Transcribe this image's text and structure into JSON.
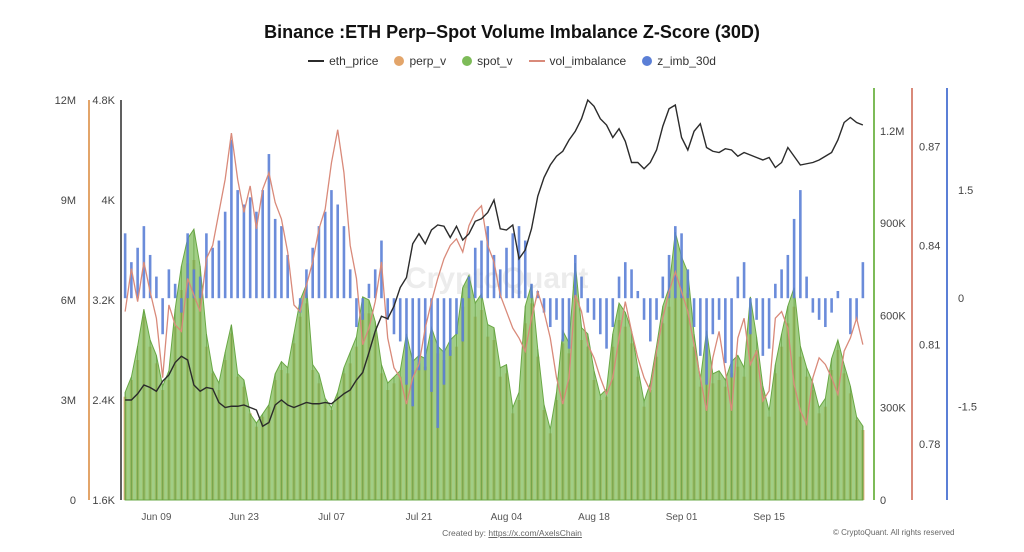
{
  "chart_data": {
    "type": "bar",
    "title": "Binance :ETH Perp–Spot Volume Imbalance Z-Score (30D)",
    "legend": {
      "placement": "top-center"
    },
    "x_ticks": [
      "Jun 09",
      "Jun 23",
      "Jul 07",
      "Jul 21",
      "Aug 04",
      "Aug 18",
      "Sep 01",
      "Sep 15"
    ],
    "axes": {
      "perp_v_left": {
        "ticks": [
          "0",
          "3M",
          "6M",
          "9M",
          "12M"
        ],
        "range": [
          0,
          12000000
        ]
      },
      "eth_price_left": {
        "ticks": [
          "1.6K",
          "2.4K",
          "3.2K",
          "4K",
          "4.8K"
        ],
        "range": [
          1600,
          4800
        ]
      },
      "spot_v_right": {
        "ticks": [
          "0",
          "300K",
          "600K",
          "900K",
          "1.2M"
        ],
        "range": [
          0,
          1300000
        ]
      },
      "vol_imbalance_right": {
        "ticks": [
          "0.78",
          "0.81",
          "0.84",
          "0.87"
        ],
        "range": [
          0.763,
          0.884
        ]
      },
      "z_imb_right": {
        "ticks": [
          "-1.5",
          "0",
          "1.5"
        ],
        "range": [
          -2.8,
          2.75
        ]
      }
    },
    "series": [
      {
        "name": "eth_price",
        "type": "line",
        "color": "#2b2b2b",
        "values": [
          2400,
          2400,
          2450,
          2520,
          2500,
          2470,
          2550,
          2600,
          2700,
          2750,
          2720,
          2520,
          2470,
          2500,
          2490,
          2380,
          2340,
          2350,
          2350,
          2360,
          2340,
          2320,
          2190,
          2220,
          2360,
          2400,
          2360,
          2340,
          2360,
          2380,
          2370,
          2370,
          2380,
          2370,
          2410,
          2450,
          2480,
          2560,
          2620,
          2780,
          2950,
          3070,
          3050,
          3150,
          3300,
          3380,
          3650,
          3730,
          3650,
          3760,
          3800,
          3790,
          3700,
          3790,
          3680,
          3730,
          3830,
          3850,
          3900,
          4000,
          3770,
          3760,
          3800,
          3530,
          3600,
          3770,
          4030,
          4180,
          4280,
          4350,
          4390,
          4480,
          4550,
          4650,
          4800,
          4750,
          4650,
          4600,
          4500,
          4570,
          4470,
          4300,
          4300,
          4250,
          4300,
          4400,
          4590,
          4730,
          4760,
          4500,
          4400,
          4550,
          4610,
          4420,
          4390,
          4380,
          4410,
          4400,
          4350,
          4380,
          4360,
          4340,
          4320,
          4340,
          4260,
          4300,
          4420,
          4350,
          4280,
          4290,
          4300,
          4320,
          4350,
          4380,
          4480,
          4620,
          4660,
          4620,
          4600
        ]
      },
      {
        "name": "perp_v",
        "type": "bar",
        "color": "#e3a56a",
        "values": [
          3100000,
          3600000,
          4200000,
          5500000,
          4600000,
          4100000,
          3300000,
          3600000,
          5200000,
          6300000,
          7100000,
          7200000,
          6300000,
          4600000,
          3800000,
          3300000,
          4200000,
          5000000,
          3700000,
          3400000,
          2600000,
          2200000,
          2500000,
          2800000,
          3600000,
          3900000,
          3800000,
          4700000,
          5500000,
          5900000,
          3900000,
          3500000,
          2900000,
          2700000,
          3100000,
          3800000,
          4100000,
          4600000,
          5600000,
          5600000,
          5000000,
          3800000,
          3300000,
          3500000,
          3700000,
          4600000,
          3900000,
          4100000,
          4000000,
          4800000,
          4400000,
          4200000,
          4500000,
          4600000,
          5800000,
          6100000,
          5500000,
          5700000,
          4900000,
          4800000,
          3700000,
          3800000,
          2600000,
          3000000,
          5300000,
          5900000,
          4300000,
          2700000,
          2000000,
          3000000,
          4700000,
          4400000,
          6400000,
          4800000,
          4600000,
          3600000,
          3000000,
          3100000,
          4600000,
          5400000,
          5200000,
          4700000,
          3700000,
          2800000,
          3300000,
          4300000,
          5300000,
          5800000,
          7200000,
          6600000,
          6200000,
          4600000,
          3400000,
          4700000,
          3500000,
          3600000,
          3400000,
          3800000,
          4000000,
          3700000,
          5600000,
          4500000,
          3200000,
          2500000,
          3800000,
          4600000,
          5300000,
          5800000,
          4300000,
          3700000,
          3300000,
          2600000,
          2800000,
          3900000,
          4500000,
          3800000,
          3200000,
          2400000,
          2100000
        ]
      },
      {
        "name": "spot_v",
        "type": "area",
        "color": "#7dbb58",
        "values": [
          350000,
          400000,
          500000,
          620000,
          520000,
          470000,
          370000,
          420000,
          620000,
          760000,
          850000,
          880000,
          760000,
          540000,
          420000,
          380000,
          480000,
          570000,
          410000,
          390000,
          280000,
          250000,
          280000,
          310000,
          410000,
          450000,
          430000,
          540000,
          650000,
          700000,
          440000,
          410000,
          330000,
          300000,
          350000,
          430000,
          480000,
          530000,
          660000,
          650000,
          580000,
          440000,
          380000,
          400000,
          420000,
          540000,
          450000,
          470000,
          460000,
          560000,
          500000,
          480000,
          520000,
          540000,
          690000,
          730000,
          640000,
          670000,
          570000,
          560000,
          430000,
          440000,
          300000,
          350000,
          630000,
          700000,
          490000,
          310000,
          230000,
          350000,
          550000,
          510000,
          770000,
          560000,
          540000,
          420000,
          340000,
          360000,
          540000,
          640000,
          610000,
          550000,
          430000,
          320000,
          380000,
          500000,
          630000,
          690000,
          870000,
          790000,
          740000,
          540000,
          390000,
          550000,
          410000,
          420000,
          390000,
          450000,
          470000,
          430000,
          660000,
          530000,
          370000,
          290000,
          440000,
          540000,
          630000,
          690000,
          500000,
          430000,
          380000,
          300000,
          330000,
          460000,
          520000,
          440000,
          370000,
          270000,
          240000
        ]
      },
      {
        "name": "vol_imbalance",
        "type": "line",
        "color": "#d98a7a",
        "values": [
          0.82,
          0.833,
          0.823,
          0.835,
          0.826,
          0.818,
          0.8,
          0.822,
          0.816,
          0.814,
          0.83,
          0.825,
          0.82,
          0.836,
          0.84,
          0.85,
          0.86,
          0.874,
          0.86,
          0.85,
          0.858,
          0.845,
          0.857,
          0.862,
          0.853,
          0.848,
          0.838,
          0.822,
          0.82,
          0.828,
          0.835,
          0.845,
          0.851,
          0.865,
          0.875,
          0.862,
          0.84,
          0.83,
          0.81,
          0.815,
          0.823,
          0.835,
          0.812,
          0.803,
          0.8,
          0.792,
          0.8,
          0.804,
          0.815,
          0.823,
          0.83,
          0.836,
          0.84,
          0.842,
          0.838,
          0.846,
          0.85,
          0.852,
          0.84,
          0.835,
          0.825,
          0.82,
          0.815,
          0.812,
          0.808,
          0.818,
          0.826,
          0.82,
          0.812,
          0.8,
          0.792,
          0.8,
          0.825,
          0.82,
          0.81,
          0.806,
          0.8,
          0.795,
          0.8,
          0.812,
          0.823,
          0.814,
          0.806,
          0.8,
          0.796,
          0.808,
          0.818,
          0.826,
          0.832,
          0.826,
          0.82,
          0.81,
          0.8,
          0.79,
          0.806,
          0.814,
          0.802,
          0.79,
          0.812,
          0.818,
          0.804,
          0.808,
          0.793,
          0.796,
          0.818,
          0.82,
          0.815,
          0.798,
          0.79,
          0.786,
          0.8,
          0.806,
          0.804,
          0.8,
          0.795,
          0.808,
          0.812,
          0.818,
          0.81
        ]
      },
      {
        "name": "z_imb_30d",
        "type": "bar",
        "color": "#5b7fd6",
        "values": [
          0.9,
          0.5,
          0.7,
          1.0,
          0.6,
          0.3,
          -0.5,
          0.4,
          0.2,
          -0.2,
          0.9,
          0.4,
          0.3,
          0.9,
          0.7,
          0.8,
          1.2,
          2.2,
          1.5,
          1.3,
          1.4,
          1.2,
          1.5,
          2.0,
          1.1,
          1.0,
          0.6,
          0.0,
          -0.2,
          0.4,
          0.7,
          1.0,
          1.2,
          1.5,
          1.3,
          1.0,
          0.4,
          -0.4,
          -0.3,
          0.2,
          0.4,
          0.8,
          -0.3,
          -0.5,
          -0.6,
          -1.2,
          -1.5,
          -1.0,
          -1.0,
          -1.3,
          -1.8,
          -1.2,
          -0.8,
          -0.5,
          -0.6,
          0.3,
          0.7,
          0.8,
          1.0,
          0.6,
          0.4,
          0.7,
          0.9,
          1.0,
          0.8,
          0.2,
          0.1,
          -0.2,
          -0.4,
          -0.3,
          -0.6,
          -0.7,
          0.6,
          0.3,
          -0.2,
          -0.3,
          -0.5,
          -0.7,
          -0.4,
          0.3,
          0.5,
          0.4,
          0.1,
          -0.3,
          -0.6,
          -0.3,
          0.3,
          0.6,
          1.0,
          0.9,
          0.4,
          -0.4,
          -0.8,
          -1.2,
          -0.5,
          -0.3,
          -0.9,
          -1.1,
          0.3,
          0.5,
          -0.5,
          -0.3,
          -0.8,
          -0.7,
          0.2,
          0.4,
          0.6,
          1.1,
          1.5,
          0.3,
          -0.2,
          -0.3,
          -0.4,
          -0.2,
          0.1,
          0.0,
          -0.5,
          -0.3,
          0.5
        ]
      }
    ]
  },
  "watermark": "CryptoQuant",
  "footer": {
    "credit_prefix": "Created by: ",
    "credit_link": "https://x.com/AxelsChain",
    "brand": "© CryptoQuant. All rights reserved"
  },
  "colors": {
    "eth_price": "#2b2b2b",
    "perp_v": "#e3a56a",
    "spot_v": "#7dbb58",
    "vol_imbalance": "#d98a7a",
    "z_imb_30d": "#5b7fd6"
  }
}
